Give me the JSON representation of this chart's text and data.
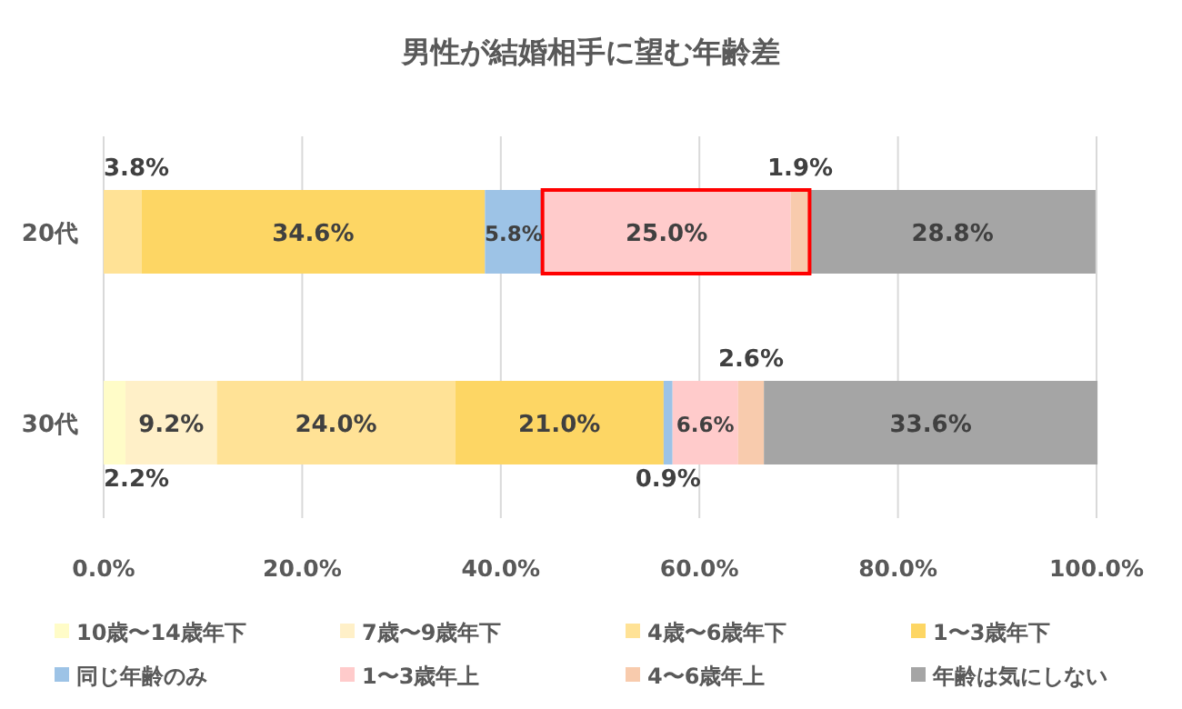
{
  "chart_data": {
    "type": "bar",
    "orientation": "horizontal",
    "stacked": true,
    "title": "男性が結婚相手に望む年齢差",
    "categories": [
      "20代",
      "30代"
    ],
    "xlim": [
      0,
      100
    ],
    "xticks": [
      {
        "value": 0,
        "label": "0.0%"
      },
      {
        "value": 20,
        "label": "20.0%"
      },
      {
        "value": 40,
        "label": "40.0%"
      },
      {
        "value": 60,
        "label": "60.0%"
      },
      {
        "value": 80,
        "label": "80.0%"
      },
      {
        "value": 100,
        "label": "100.0%"
      }
    ],
    "grid": "x",
    "legend": "bottom",
    "series": [
      {
        "name": "10歳〜14歳年下",
        "color": "#fffcc8",
        "values": [
          0,
          2.2
        ],
        "value_labels": [
          null,
          "2.2%"
        ]
      },
      {
        "name": "7歳〜9歳年下",
        "color": "#fff0c8",
        "values": [
          0,
          9.2
        ],
        "value_labels": [
          null,
          "9.2%"
        ]
      },
      {
        "name": "4歳〜6歳年下",
        "color": "#ffe296",
        "values": [
          3.8,
          24.0
        ],
        "value_labels": [
          "3.8%",
          "24.0%"
        ]
      },
      {
        "name": "1〜3歳年下",
        "color": "#fdd664",
        "values": [
          34.6,
          21.0
        ],
        "value_labels": [
          "34.6%",
          "21.0%"
        ]
      },
      {
        "name": "同じ年齢のみ",
        "color": "#9dc3e6",
        "values": [
          5.8,
          0.9
        ],
        "value_labels": [
          "5.8%",
          "0.9%"
        ]
      },
      {
        "name": "1〜3歳年上",
        "color": "#ffcbcb",
        "values": [
          25.0,
          6.6
        ],
        "value_labels": [
          "25.0%",
          "6.6%"
        ]
      },
      {
        "name": "4〜6歳年上",
        "color": "#f8cbad",
        "values": [
          1.9,
          2.6
        ],
        "value_labels": [
          "1.9%",
          "2.6%"
        ]
      },
      {
        "name": "年齢は気にしない",
        "color": "#a5a5a5",
        "values": [
          28.8,
          33.6
        ],
        "value_labels": [
          "28.8%",
          "33.6%"
        ]
      }
    ]
  }
}
